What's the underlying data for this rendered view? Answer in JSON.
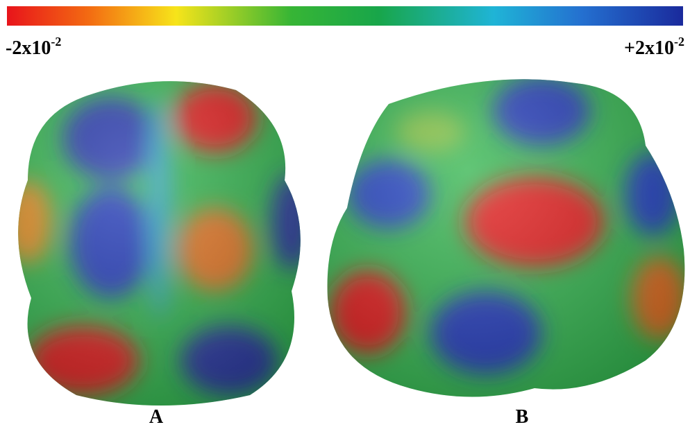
{
  "colorbar": {
    "min_label": {
      "base": "-2x10",
      "exponent": "-2"
    },
    "max_label": {
      "base": "+2x10",
      "exponent": "-2"
    }
  },
  "panels": [
    {
      "label": "A"
    },
    {
      "label": "B"
    }
  ]
}
